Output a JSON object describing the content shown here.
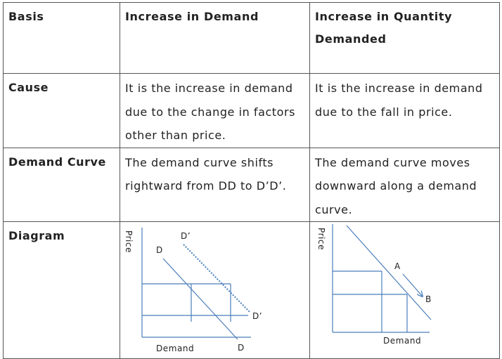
{
  "table": {
    "header": {
      "basis": "Basis",
      "col1": "Increase in Demand",
      "col2": "Increase in Quantity Demanded"
    },
    "rows": [
      {
        "label": "Cause",
        "col1": "It is the increase in demand due to the change in factors other than price.",
        "col2": "It is the increase in demand due to the fall in price."
      },
      {
        "label": "Demand Curve",
        "col1": "The demand curve shifts rightward from DD to D’D’.",
        "col2": "The demand curve moves downward along a demand curve."
      },
      {
        "label": "Diagram"
      }
    ]
  },
  "diagram1": {
    "y_axis_label": "Price",
    "x_axis_label": "Demand",
    "curve_top_label": "D",
    "curve_bottom_label": "D",
    "shifted_top_label": "D’",
    "shifted_bottom_label": "D’",
    "line_color": "#4a7ebb"
  },
  "diagram2": {
    "y_axis_label": "Price",
    "x_axis_label": "Demand",
    "point_a_label": "A",
    "point_b_label": "B",
    "line_color": "#4a7ebb"
  }
}
